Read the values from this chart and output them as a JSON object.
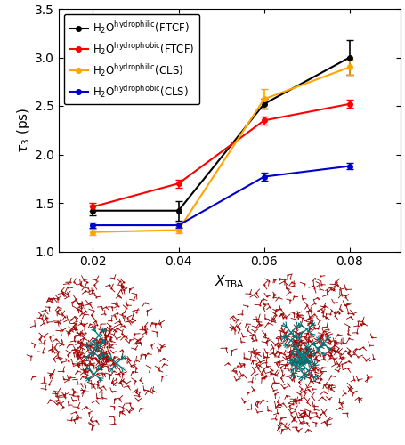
{
  "x": [
    0.02,
    0.04,
    0.06,
    0.08
  ],
  "series": {
    "H2O_hydrophilic_FTCF": {
      "y": [
        1.42,
        1.42,
        2.52,
        3.0
      ],
      "yerr": [
        0.05,
        0.1,
        0.05,
        0.18
      ],
      "color": "#000000"
    },
    "H2O_hydrophobic_FTCF": {
      "y": [
        1.46,
        1.7,
        2.35,
        2.52
      ],
      "yerr": [
        0.04,
        0.04,
        0.04,
        0.04
      ],
      "color": "#ff0000"
    },
    "H2O_hydrophilic_CLS": {
      "y": [
        1.2,
        1.22,
        2.57,
        2.9
      ],
      "yerr": [
        0.03,
        0.03,
        0.1,
        0.08
      ],
      "color": "#ffa500"
    },
    "H2O_hydrophobic_CLS": {
      "y": [
        1.27,
        1.27,
        1.77,
        1.88
      ],
      "yerr": [
        0.03,
        0.03,
        0.04,
        0.03
      ],
      "color": "#0000cc"
    }
  },
  "legend_text": [
    "H$_2$O$^{\\rm hydrophilic}$(FTCF)",
    "H$_2$O$^{\\rm hydrophobic}$(FTCF)",
    "H$_2$O$^{\\rm hydrophilic}$(CLS)",
    "H$_2$O$^{\\rm hydrophobic}$(CLS)"
  ],
  "xlabel": "$X_{\\rm TBA}$",
  "ylabel": "$\\tau_3$ (ps)",
  "ylim": [
    1.0,
    3.5
  ],
  "xlim": [
    0.012,
    0.092
  ],
  "xticks": [
    0.02,
    0.04,
    0.06,
    0.08
  ],
  "yticks": [
    1.0,
    1.5,
    2.0,
    2.5,
    3.0,
    3.5
  ],
  "marker": "o",
  "markersize": 4,
  "linewidth": 1.5,
  "capsize": 3,
  "elinewidth": 1.2,
  "figure_width": 4.55,
  "figure_height": 5.0,
  "dpi": 100
}
